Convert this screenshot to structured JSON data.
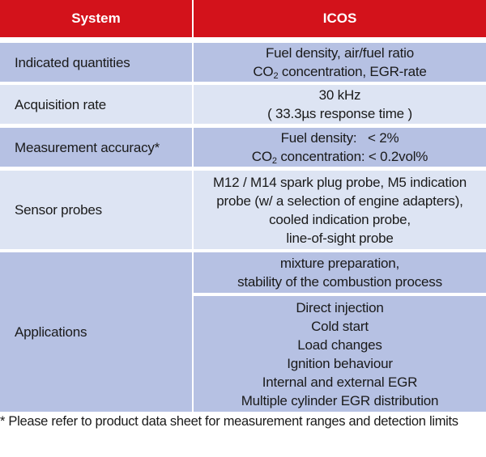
{
  "header": {
    "system_label": "System",
    "icos_label": "ICOS"
  },
  "rows": {
    "indicated": {
      "label": "Indicated quantities",
      "line1": "Fuel density, air/fuel ratio",
      "line2_pre": "CO",
      "line2_sub": "2",
      "line2_post": " concentration, EGR-rate"
    },
    "acquisition": {
      "label": "Acquisition rate",
      "line1": "30 kHz",
      "line2": "( 33.3µs response time )"
    },
    "accuracy": {
      "label": "Measurement accuracy*",
      "line1": "Fuel density:   < 2%",
      "line2_pre": "CO",
      "line2_sub": "2",
      "line2_post": " concentration: < 0.2vol%"
    },
    "sensor": {
      "label": "Sensor probes",
      "lines": [
        "M12 / M14 spark plug probe, M5 indication",
        "probe (w/ a selection of engine adapters),",
        "cooled indication probe,",
        "line-of-sight probe"
      ]
    },
    "applications": {
      "label": "Applications",
      "group1": [
        "mixture preparation,",
        "stability of the combustion process"
      ],
      "group2": [
        "Direct injection",
        "Cold start",
        "Load changes",
        "Ignition behaviour",
        "Internal and external EGR",
        "Multiple cylinder EGR distribution"
      ]
    }
  },
  "footnote": "* Please refer to product data sheet for measurement ranges and detection limits",
  "colors": {
    "header": "#d3121b",
    "row_dark": "#b6c1e3",
    "row_light": "#dde4f3"
  }
}
